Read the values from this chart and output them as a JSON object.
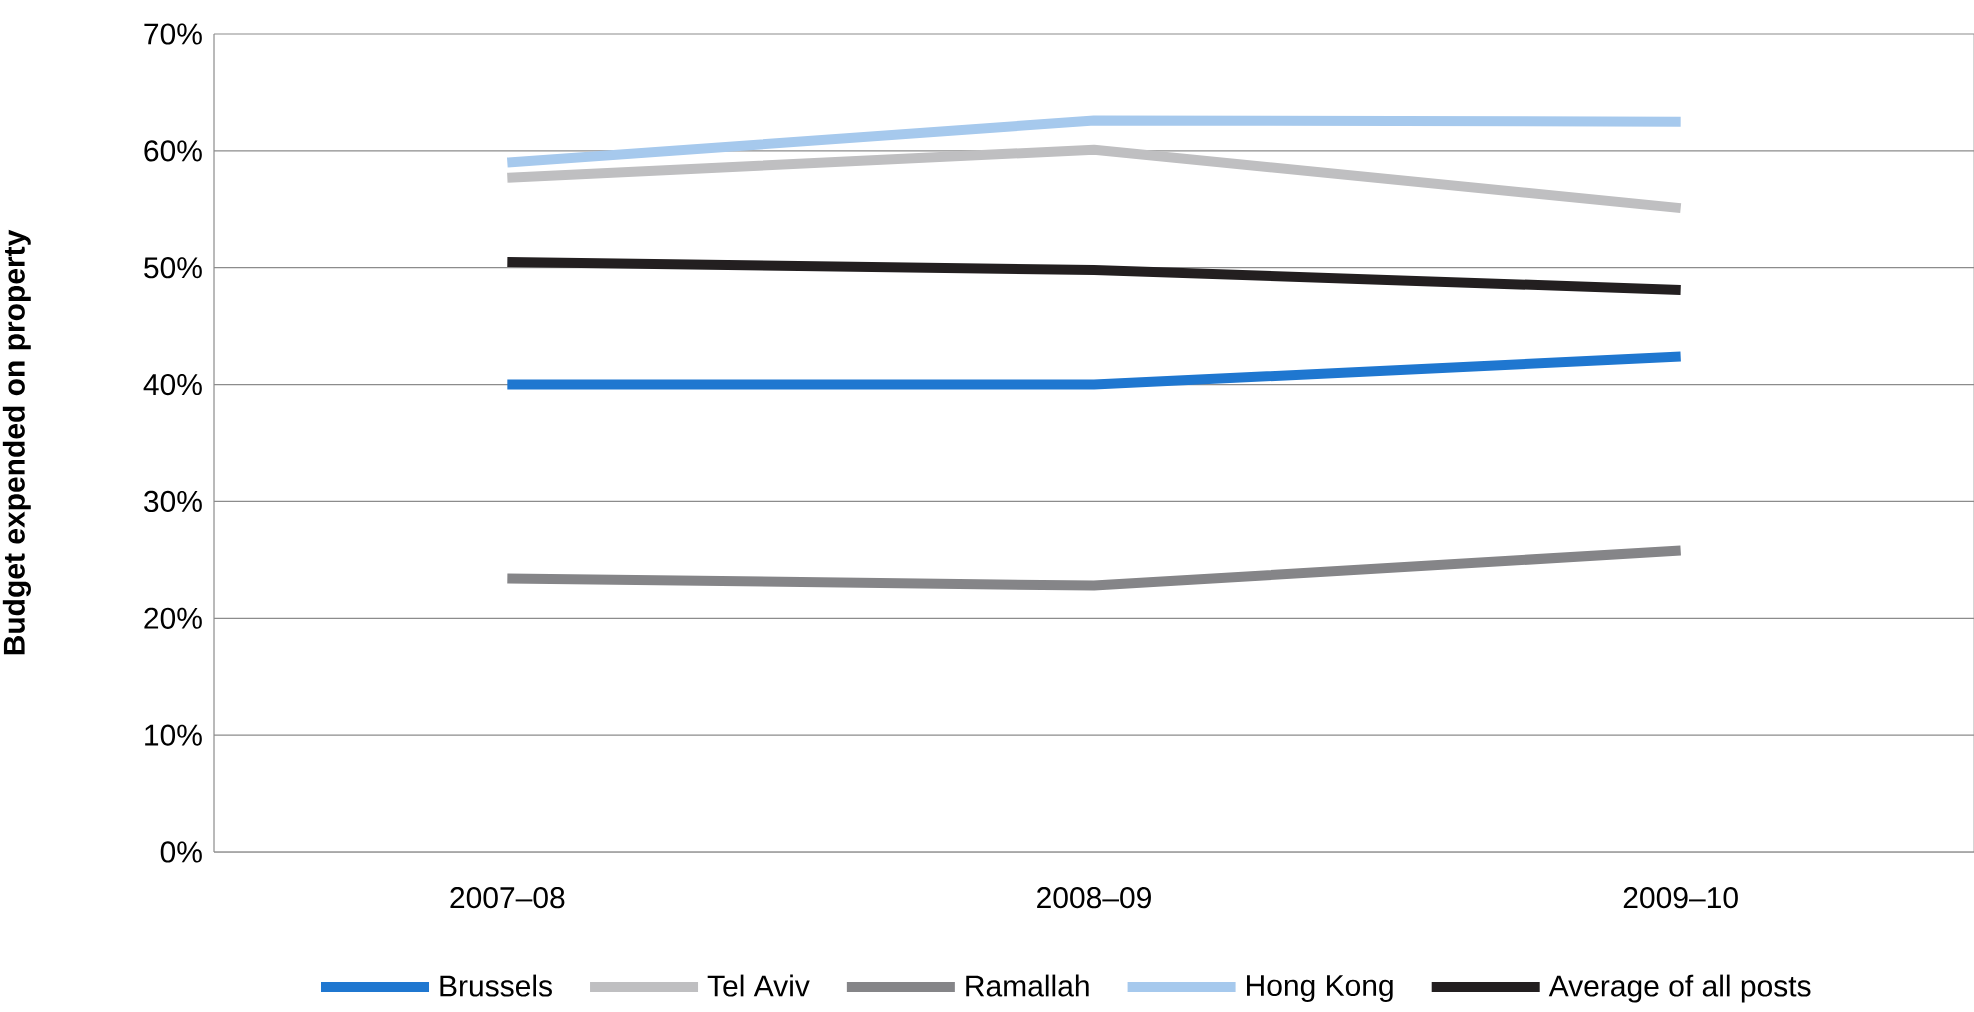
{
  "chart_data": {
    "type": "line",
    "ylabel": "Budget expended on property",
    "categories": [
      "2007–08",
      "2008–09",
      "2009–10"
    ],
    "series": [
      {
        "name": "Brussels",
        "color": "#1f77d0",
        "values": [
          40.0,
          40.0,
          42.4
        ]
      },
      {
        "name": "Tel Aviv",
        "color": "#bfbfc1",
        "values": [
          57.7,
          60.1,
          55.1
        ]
      },
      {
        "name": "Ramallah",
        "color": "#858588",
        "values": [
          23.4,
          22.8,
          25.8
        ]
      },
      {
        "name": "Hong Kong",
        "color": "#a6c9ed",
        "values": [
          59.0,
          62.6,
          62.5
        ]
      },
      {
        "name": "Average of all posts",
        "color": "#231f20",
        "values": [
          50.5,
          49.8,
          48.1
        ]
      }
    ],
    "ylim": [
      0,
      70
    ],
    "yticks": [
      {
        "value": 0,
        "label": "0%"
      },
      {
        "value": 10,
        "label": "10%"
      },
      {
        "value": 20,
        "label": "20%"
      },
      {
        "value": 30,
        "label": "30%"
      },
      {
        "value": 40,
        "label": "40%"
      },
      {
        "value": 50,
        "label": "50%"
      },
      {
        "value": 60,
        "label": "60%"
      },
      {
        "value": 70,
        "label": "70%"
      }
    ],
    "grid": "y",
    "legend": "bottom",
    "marker": "none",
    "line_style": "solid"
  }
}
